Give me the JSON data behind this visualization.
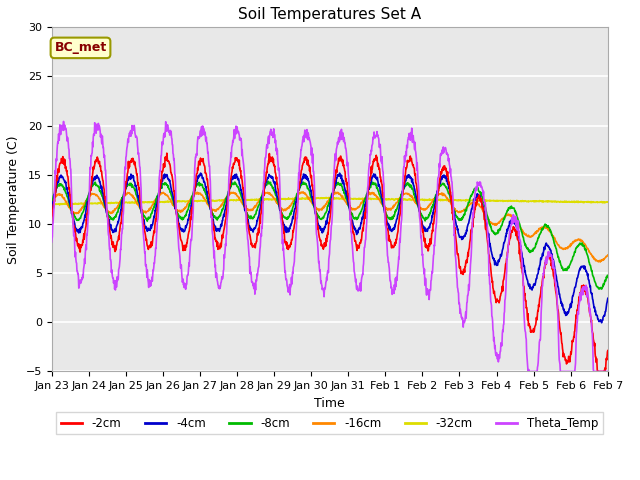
{
  "title": "Soil Temperatures Set A",
  "xlabel": "Time",
  "ylabel": "Soil Temperature (C)",
  "ylim": [
    -5,
    30
  ],
  "yticks": [
    -5,
    0,
    5,
    10,
    15,
    20,
    25,
    30
  ],
  "xtick_labels": [
    "Jan 23",
    "Jan 24",
    "Jan 25",
    "Jan 26",
    "Jan 27",
    "Jan 28",
    "Jan 29",
    "Jan 30",
    "Jan 31",
    "Feb 1",
    "Feb 2",
    "Feb 3",
    "Feb 4",
    "Feb 5",
    "Feb 6",
    "Feb 7"
  ],
  "colors": {
    "-2cm": "#ff0000",
    "-4cm": "#0000cc",
    "-8cm": "#00bb00",
    "-16cm": "#ff8800",
    "-32cm": "#dddd00",
    "Theta_Temp": "#cc44ff"
  },
  "annotation_text": "BC_met",
  "annotation_color": "#880000",
  "annotation_bg": "#ffffcc",
  "annotation_border": "#999900",
  "plot_bg": "#e8e8e8",
  "fig_bg": "#ffffff",
  "grid_color": "#ffffff",
  "title_fontsize": 11,
  "axis_label_fontsize": 9,
  "tick_fontsize": 8
}
